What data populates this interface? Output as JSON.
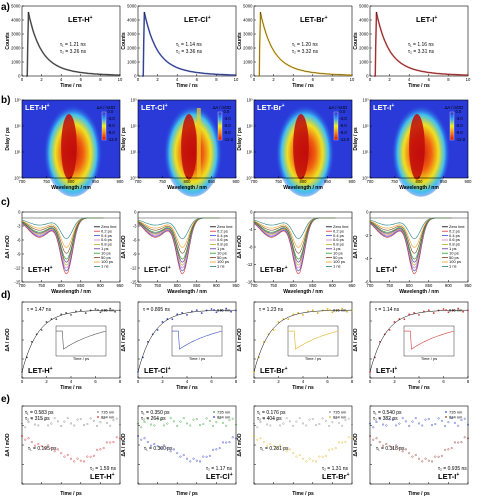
{
  "panel_labels": [
    "a)",
    "b)",
    "c)",
    "d)",
    "e)"
  ],
  "samples": [
    {
      "name": "LET-H",
      "sup": "+",
      "color": "#555555"
    },
    {
      "name": "LET-Cl",
      "sup": "+",
      "color": "#3a4fc0"
    },
    {
      "name": "LET-Br",
      "sup": "+",
      "color": "#e3b21a"
    },
    {
      "name": "LET-I",
      "sup": "+",
      "color": "#d23a3a"
    }
  ],
  "row_a": {
    "xlabel": "Time / ns",
    "ylabel": "Counts",
    "xticks": [
      "0",
      "2",
      "4",
      "6",
      "8",
      "10"
    ],
    "yticks": [
      "0",
      "1000",
      "2000",
      "3000",
      "4000",
      "5000"
    ],
    "tau1": [
      "τ₁ = 1.21 ns",
      "τ₁ = 1.14 ns",
      "τ₁ = 1.20 ns",
      "τ₁ = 1.16 ns"
    ],
    "tau2": [
      "τ₂ = 3.26 ns",
      "τ₂ = 3.36 ns",
      "τ₂ = 3.32 ns",
      "τ₂ = 3.31 ns"
    ]
  },
  "row_b": {
    "xlabel": "Wavelength / nm",
    "ylabel": "Delay / ps",
    "xticks": [
      "700",
      "750",
      "800",
      "850",
      "900"
    ],
    "yticks": [
      "10³",
      "10²",
      "10¹",
      "10⁰"
    ],
    "cbar_title": "ΔA / mOD",
    "cbar_ticks": [
      "0.0",
      "-3.0",
      "-6.0",
      "-9.0",
      "-12.0"
    ]
  },
  "row_c": {
    "xlabel": "Wavelength / nm",
    "ylabel": "ΔA / mOD",
    "xticks": [
      "700",
      "750",
      "800",
      "850",
      "900",
      "950"
    ],
    "yticks": [
      [
        "0",
        "-3",
        "-6",
        "-9",
        "-12",
        "-15"
      ],
      [
        "0",
        "-3",
        "-6",
        "-9",
        "-12",
        "-15"
      ],
      [
        "0",
        "-4",
        "-8",
        "-12",
        "-16"
      ],
      [
        "0",
        "-2",
        "-4",
        "-6"
      ]
    ],
    "legend": [
      "Zero line",
      "0.2 ps",
      "0.4 ps",
      "0.6 ps",
      "0.8 ps",
      "1 ps",
      "10 ps",
      "50 ps",
      "100 ps",
      "1 ns"
    ],
    "legend_colors": [
      "#000000",
      "#e03030",
      "#3050e0",
      "#e070c0",
      "#b0b020",
      "#6030a0",
      "#20a020",
      "#804020",
      "#f0a020",
      "#208080"
    ]
  },
  "row_d": {
    "xlabel": "Time / ns",
    "ylabel": "ΔA / mOD",
    "xticks": [
      "0",
      "2",
      "4",
      "6",
      "8"
    ],
    "tau": [
      "τ = 1.47 ns",
      "τ = 0.895 ns",
      "τ = 1.23 ns",
      "τ = 1.14 ns"
    ],
    "probe": "816 nm",
    "inset_xlabel": "Time / ps"
  },
  "row_e": {
    "xlabel": "Time / ps",
    "ylabel": "ΔA / mOD",
    "probe1": "735 nm",
    "probe2": "834 nm",
    "tau_top_1": [
      "τ₁ = 0.583 ps",
      "τ₁ = 0.350 ps",
      "τ₁ = 0.176 ps",
      "τ₁ = 0.540 ps"
    ],
    "tau_top_2": [
      "τ₂ = 315 ps",
      "τ₂ = 264 ps",
      "τ₂ = 404 ps",
      "τ₂ = 382 ps"
    ],
    "tau_low_1": [
      "τ₁ = 0.195 ps",
      "τ₁ = 0.300 ps",
      "τ₁ = 0.281 ps",
      "τ₁ = 0.318 ps"
    ],
    "tau_low_2": [
      "τ₂ = 1.59 ns",
      "τ₂ = 1.17 ns",
      "τ₂ = 1.31 ns",
      "τ₂ = 0.935 ns"
    ],
    "top_colors": [
      "#7a7a7a",
      "#2aa02a",
      "#8a8a8a",
      "#2040c0"
    ],
    "low_colors": [
      "#d02020",
      "#2030c0",
      "#e3b21a",
      "#8a2a20"
    ]
  }
}
